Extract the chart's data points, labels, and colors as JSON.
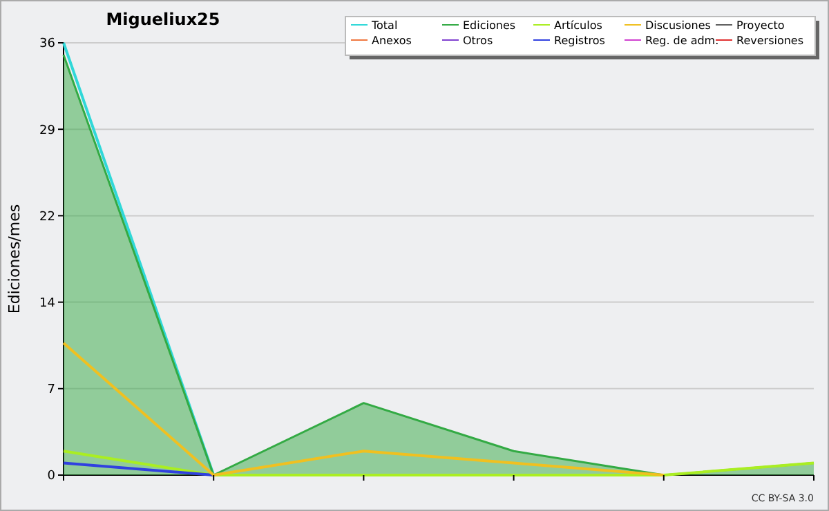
{
  "chart_data": {
    "type": "line",
    "title": "Migueliux25",
    "ylabel": "Ediciones/mes",
    "categories": [
      null,
      null,
      null,
      null,
      null,
      null
    ],
    "ylim": [
      0,
      36
    ],
    "yticks": [
      0,
      {
        "value": 7.2,
        "label": "7"
      },
      {
        "value": 14.4,
        "label": "14"
      },
      {
        "value": 21.6,
        "label": "22"
      },
      {
        "value": 28.8,
        "label": "29"
      },
      36
    ],
    "grid": "y",
    "legend": "top right",
    "annotations": [
      "CC BY-SA 3.0"
    ],
    "series": [
      {
        "name": "Total",
        "color": "#30d8d8",
        "values": [
          36,
          0,
          null,
          null,
          null,
          null
        ]
      },
      {
        "name": "Anexos",
        "color": "#f07840",
        "values": [
          null,
          null,
          null,
          null,
          null,
          null
        ]
      },
      {
        "name": "Ediciones",
        "type": "area",
        "color": "#33aa44",
        "values": [
          35,
          0,
          6,
          2,
          0,
          1
        ]
      },
      {
        "name": "Otros",
        "color": "#8040d0",
        "values": [
          null,
          null,
          null,
          null,
          null,
          null
        ]
      },
      {
        "name": "Artículos",
        "color": "#aaee22",
        "values": [
          2,
          0,
          0,
          0,
          0,
          1
        ]
      },
      {
        "name": "Registros",
        "color": "#3040e0",
        "values": [
          1,
          0,
          null,
          null,
          null,
          null
        ]
      },
      {
        "name": "Discusiones",
        "color": "#f0c020",
        "values": [
          11,
          0,
          2,
          1,
          0,
          null
        ]
      },
      {
        "name": "Reg. de adm.",
        "color": "#d040d0",
        "values": [
          null,
          null,
          null,
          null,
          null,
          null
        ]
      },
      {
        "name": "Proyecto",
        "color": "#606060",
        "values": [
          null,
          null,
          null,
          null,
          null,
          null
        ]
      },
      {
        "name": "Reversiones",
        "color": "#e03030",
        "values": [
          null,
          null,
          null,
          null,
          null,
          null
        ]
      }
    ]
  }
}
